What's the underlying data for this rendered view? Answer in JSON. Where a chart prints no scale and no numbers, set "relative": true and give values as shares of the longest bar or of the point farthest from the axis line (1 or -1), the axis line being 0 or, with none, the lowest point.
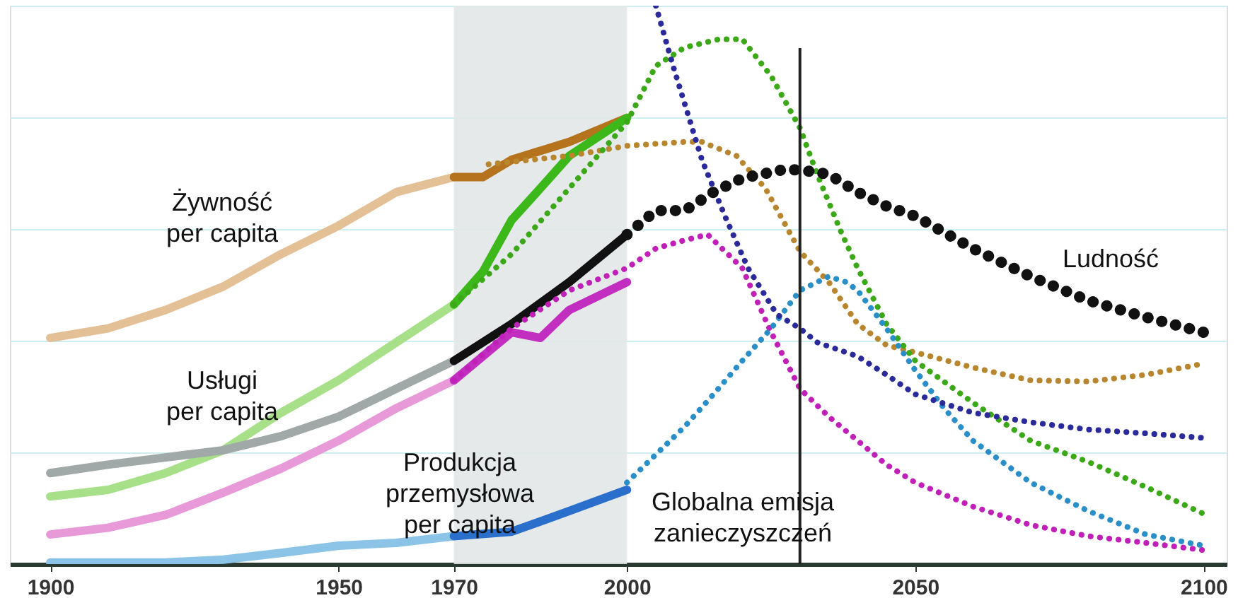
{
  "chart_data": {
    "type": "line",
    "relative": true,
    "tick_labels": "x",
    "grid": "y",
    "marker": "none",
    "xlim": [
      1893,
      2104
    ],
    "xticks": [
      1900,
      1950,
      1970,
      2000,
      2050,
      2100
    ],
    "bands": [
      {
        "axis": "x",
        "from": 1970,
        "to": 2000,
        "color": "#e2e7e7"
      }
    ],
    "ref_lines": [
      {
        "axis": "x",
        "value": 2030,
        "color": "#222222",
        "line_style": "solid"
      }
    ],
    "annotations": [
      "Żywność\nper capita",
      "Usługi\nper capita",
      "Produkcja\nprzemysłowa\nper capita",
      "Globalna emisja\nzanieczyszczeń",
      "Ludność"
    ],
    "series": [
      {
        "type": "line",
        "line_style": "solid",
        "color": "#e3c096",
        "x": [
          1900,
          1910,
          1920,
          1930,
          1940,
          1950,
          1960,
          1970
        ],
        "values": [
          0.405,
          0.422,
          0.455,
          0.497,
          0.555,
          0.606,
          0.666,
          0.693
        ]
      },
      {
        "type": "line",
        "line_style": "solid",
        "color": "#a8e08a",
        "x": [
          1900,
          1910,
          1920,
          1930,
          1940,
          1950,
          1960,
          1970
        ],
        "values": [
          0.121,
          0.133,
          0.163,
          0.204,
          0.271,
          0.329,
          0.397,
          0.465
        ]
      },
      {
        "type": "line",
        "line_style": "solid",
        "color": "#a0a8a8",
        "x": [
          1900,
          1910,
          1920,
          1930,
          1940,
          1950,
          1960,
          1970
        ],
        "values": [
          0.163,
          0.178,
          0.191,
          0.204,
          0.229,
          0.264,
          0.314,
          0.364
        ]
      },
      {
        "type": "line",
        "line_style": "solid",
        "color": "#e89ad8",
        "x": [
          1900,
          1910,
          1920,
          1930,
          1940,
          1950,
          1960,
          1970
        ],
        "values": [
          0.053,
          0.065,
          0.088,
          0.128,
          0.171,
          0.221,
          0.279,
          0.329
        ]
      },
      {
        "type": "line",
        "line_style": "solid",
        "color": "#8cc4e8",
        "x": [
          1900,
          1920,
          1930,
          1940,
          1950,
          1960,
          1970
        ],
        "values": [
          0.003,
          0.003,
          0.008,
          0.02,
          0.033,
          0.038,
          0.05
        ]
      },
      {
        "type": "line",
        "line_style": "solid",
        "color": "#b5731e",
        "x": [
          1970,
          1975,
          1980,
          1990,
          2000
        ],
        "values": [
          0.693,
          0.693,
          0.724,
          0.756,
          0.799
        ]
      },
      {
        "type": "line",
        "line_style": "solid",
        "color": "#3cb81a",
        "x": [
          1970,
          1975,
          1980,
          1985,
          1990,
          2000
        ],
        "values": [
          0.465,
          0.523,
          0.616,
          0.673,
          0.731,
          0.799
        ]
      },
      {
        "type": "line",
        "line_style": "solid",
        "color": "#111111",
        "x": [
          1970,
          1980,
          1990,
          2000
        ],
        "values": [
          0.364,
          0.43,
          0.505,
          0.59
        ]
      },
      {
        "type": "line",
        "line_style": "solid",
        "color": "#c22fc0",
        "x": [
          1970,
          1980,
          1985,
          1990,
          2000
        ],
        "values": [
          0.329,
          0.415,
          0.405,
          0.455,
          0.505
        ]
      },
      {
        "type": "line",
        "line_style": "solid",
        "color": "#2a6fcc",
        "x": [
          1970,
          1980,
          1990,
          2000
        ],
        "values": [
          0.05,
          0.058,
          0.095,
          0.133
        ]
      },
      {
        "type": "line",
        "line_style": "dotted",
        "color": "#b8862e",
        "x": [
          1976,
          1990,
          2000,
          2010,
          2013,
          2019,
          2024,
          2030,
          2035,
          2040,
          2045,
          2050,
          2060,
          2070,
          2080,
          2090,
          2100
        ],
        "values": [
          0.716,
          0.731,
          0.749,
          0.756,
          0.756,
          0.731,
          0.673,
          0.56,
          0.505,
          0.43,
          0.392,
          0.379,
          0.352,
          0.329,
          0.327,
          0.339,
          0.359
        ]
      },
      {
        "type": "line",
        "line_style": "dotted",
        "color": "#3aa817",
        "x": [
          1970,
          1980,
          1990,
          2000,
          2005,
          2010,
          2016,
          2020,
          2025,
          2030,
          2033,
          2037,
          2040,
          2045,
          2050,
          2060,
          2070,
          2080,
          2090,
          2100
        ],
        "values": [
          0.465,
          0.555,
          0.673,
          0.791,
          0.892,
          0.925,
          0.94,
          0.94,
          0.874,
          0.781,
          0.698,
          0.598,
          0.53,
          0.43,
          0.364,
          0.289,
          0.221,
          0.183,
          0.138,
          0.09
        ]
      },
      {
        "type": "line",
        "line_style": "dotted",
        "color": "#c020b8",
        "x": [
          1970,
          1980,
          1990,
          2000,
          2005,
          2010,
          2014,
          2020,
          2025,
          2030,
          2035,
          2040,
          2045,
          2050,
          2060,
          2070,
          2080,
          2090,
          2100
        ],
        "values": [
          0.329,
          0.422,
          0.49,
          0.53,
          0.565,
          0.58,
          0.59,
          0.53,
          0.415,
          0.314,
          0.264,
          0.221,
          0.178,
          0.146,
          0.103,
          0.07,
          0.05,
          0.038,
          0.025
        ]
      },
      {
        "type": "line",
        "line_style": "dotted",
        "color": "#2a8fc8",
        "x": [
          2000,
          2005,
          2010,
          2015,
          2020,
          2025,
          2030,
          2035,
          2038,
          2040,
          2045,
          2050,
          2055,
          2060,
          2070,
          2080,
          2090,
          2100
        ],
        "values": [
          0.146,
          0.196,
          0.246,
          0.304,
          0.364,
          0.422,
          0.49,
          0.515,
          0.505,
          0.49,
          0.422,
          0.347,
          0.279,
          0.221,
          0.146,
          0.095,
          0.053,
          0.033
        ]
      },
      {
        "type": "line",
        "line_style": "dotted",
        "color": "#2a2a9a",
        "x": [
          2005,
          2008,
          2013,
          2017,
          2021,
          2026,
          2030,
          2033,
          2040,
          2045,
          2050,
          2060,
          2070,
          2080,
          2090,
          2100
        ],
        "values": [
          1.0,
          0.892,
          0.724,
          0.623,
          0.53,
          0.447,
          0.422,
          0.397,
          0.372,
          0.339,
          0.304,
          0.271,
          0.254,
          0.241,
          0.234,
          0.226
        ]
      },
      {
        "type": "line",
        "line_style": "dotted",
        "color": "#111111",
        "x": [
          2000,
          2005,
          2010,
          2015,
          2020,
          2027,
          2030,
          2035,
          2040,
          2045,
          2050,
          2060,
          2070,
          2080,
          2090,
          2100
        ],
        "values": [
          0.59,
          0.633,
          0.633,
          0.666,
          0.691,
          0.706,
          0.706,
          0.698,
          0.666,
          0.641,
          0.623,
          0.565,
          0.515,
          0.472,
          0.442,
          0.415
        ]
      }
    ]
  }
}
